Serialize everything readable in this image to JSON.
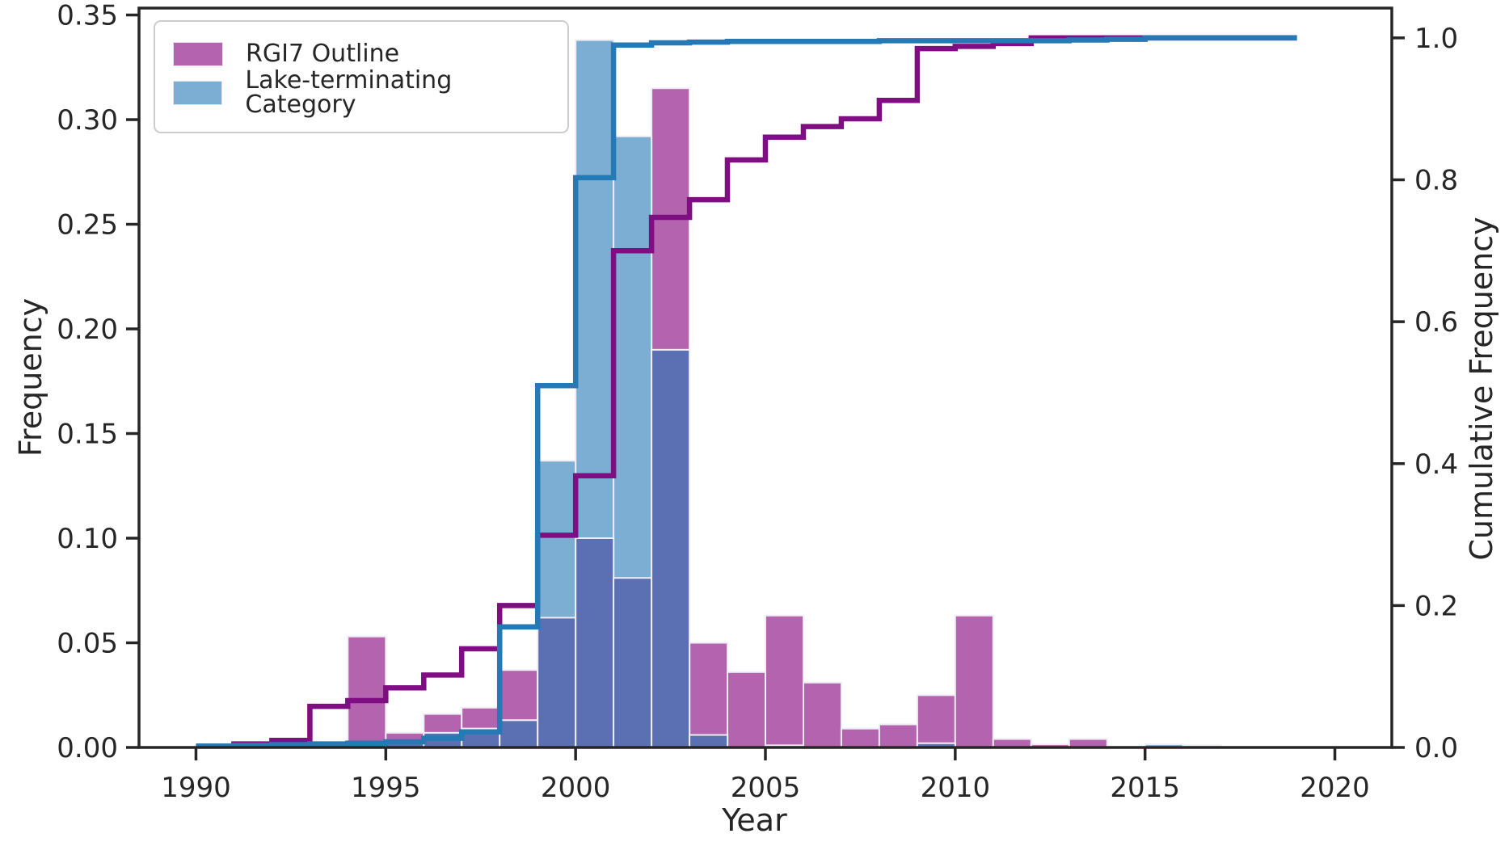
{
  "chart_data": {
    "type": "histogram_with_cumulative_step",
    "title": "",
    "xlabel": "Year",
    "ylabel_left": "Frequency",
    "ylabel_right": "Cumulative Frequency",
    "x_range": [
      1988.5,
      2021.5
    ],
    "y_left_range": [
      0,
      0.3533
    ],
    "y_right_range": [
      0,
      1.042
    ],
    "x_ticks": [
      1990,
      1995,
      2000,
      2005,
      2010,
      2015,
      2020
    ],
    "x_tick_labels": [
      "1990",
      "1995",
      "2000",
      "2005",
      "2010",
      "2015",
      "2020"
    ],
    "y_left_ticks": [
      0.0,
      0.05,
      0.1,
      0.15,
      0.2,
      0.25,
      0.3,
      0.35
    ],
    "y_left_tick_labels": [
      "0.00",
      "0.05",
      "0.10",
      "0.15",
      "0.20",
      "0.25",
      "0.30",
      "0.35"
    ],
    "y_right_ticks": [
      0.0,
      0.2,
      0.4,
      0.6,
      0.8,
      1.0
    ],
    "y_right_tick_labels": [
      "0.0",
      "0.2",
      "0.4",
      "0.6",
      "0.8",
      "1.0"
    ],
    "bin_start_year": 1990,
    "bin_width_years": 1,
    "grid": false,
    "legend_position": "upper left",
    "axis_color": "#262626",
    "bar_edge": "#f0ecf4",
    "overlap_fill": "#5b6fb3",
    "series": [
      {
        "name": "RGI7 Outline",
        "fill": "#b464ae",
        "line_color": "#7e0e82",
        "freq": [
          0,
          0.001,
          0.003,
          0.002,
          0.053,
          0.007,
          0.016,
          0.019,
          0.037,
          0.062,
          0.1,
          0.081,
          0.315,
          0.05,
          0.036,
          0.063,
          0.031,
          0.009,
          0.011,
          0.025,
          0.063,
          0.004,
          0.0015,
          0.004,
          0,
          0,
          0,
          0,
          0,
          0
        ],
        "cumulative": [
          0.002,
          0.005,
          0.01,
          0.058,
          0.066,
          0.084,
          0.102,
          0.139,
          0.2,
          0.299,
          0.383,
          0.7,
          0.747,
          0.772,
          0.828,
          0.86,
          0.875,
          0.886,
          0.912,
          0.985,
          0.988,
          0.992,
          1.0,
          1.0,
          1.0,
          1.0,
          1.0,
          1.0,
          1.0,
          1.0
        ]
      },
      {
        "name": "Lake-terminating Category",
        "fill": "#7cadd2",
        "line_color": "#2579b5",
        "freq": [
          0.001,
          0.0015,
          0.001,
          0.001,
          0.0015,
          0.002,
          0.007,
          0.009,
          0.013,
          0.137,
          0.338,
          0.292,
          0.19,
          0.006,
          0,
          0.001,
          0,
          0,
          0,
          0.002,
          0,
          0,
          0,
          0,
          0,
          0.0015,
          0.001,
          0,
          0,
          0
        ],
        "cumulative": [
          0.002,
          0.003,
          0.004,
          0.005,
          0.006,
          0.008,
          0.013,
          0.022,
          0.17,
          0.51,
          0.803,
          0.99,
          0.993,
          0.994,
          0.995,
          0.995,
          0.995,
          0.995,
          0.996,
          0.996,
          0.996,
          0.996,
          0.996,
          0.997,
          0.998,
          1.0,
          1.0,
          1.0,
          1.0,
          1.0
        ]
      }
    ]
  },
  "legend": {
    "items": [
      {
        "label": "RGI7 Outline"
      },
      {
        "label": "Lake-terminating Category"
      }
    ]
  }
}
